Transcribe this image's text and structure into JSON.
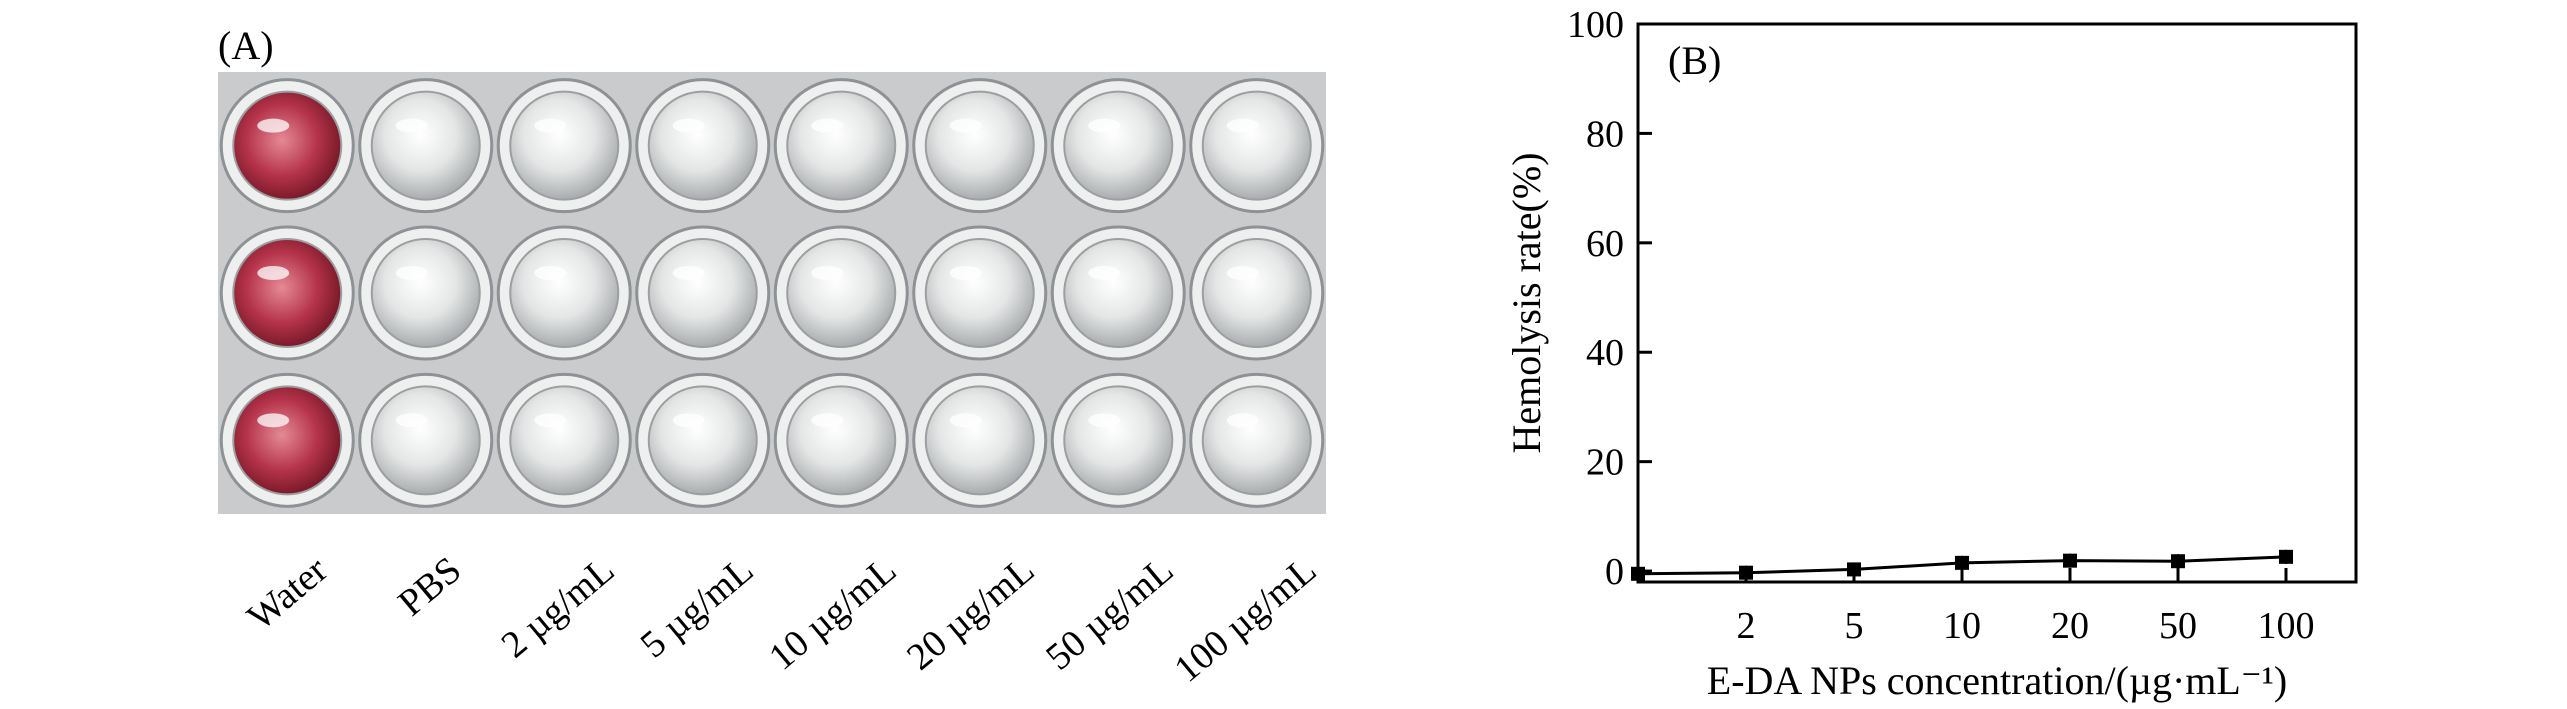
{
  "panel_a": {
    "label": "(A)",
    "sample_labels": [
      "Water",
      "PBS",
      "2 µg/mL",
      "5 µg/mL",
      "10 µg/mL",
      "20 µg/mL",
      "50 µg/mL",
      "100 µg/mL"
    ],
    "well_plate": {
      "rows": 3,
      "columns": 8,
      "colors": {
        "plate": "#c9cbcd",
        "red_well": "#b5334a",
        "clear_well": "#e4e6e6"
      }
    }
  },
  "panel_b": {
    "label": "(B)"
  },
  "chart_data": {
    "type": "line",
    "title": "",
    "xlabel": "E-DA NPs concentration/(µg·mL⁻¹)",
    "ylabel": "Hemolysis rate(%)",
    "categories": [
      "",
      "2",
      "5",
      "10",
      "20",
      "50",
      "100"
    ],
    "series": [
      {
        "values": [
          -0.5,
          -0.3,
          0.3,
          1.5,
          1.9,
          1.8,
          2.6
        ],
        "marker": "square",
        "color": "#000000"
      }
    ],
    "ylim": [
      -2,
      100
    ],
    "yticks": [
      0,
      20,
      40,
      60,
      80,
      100
    ],
    "grid": false,
    "legend": "none"
  }
}
